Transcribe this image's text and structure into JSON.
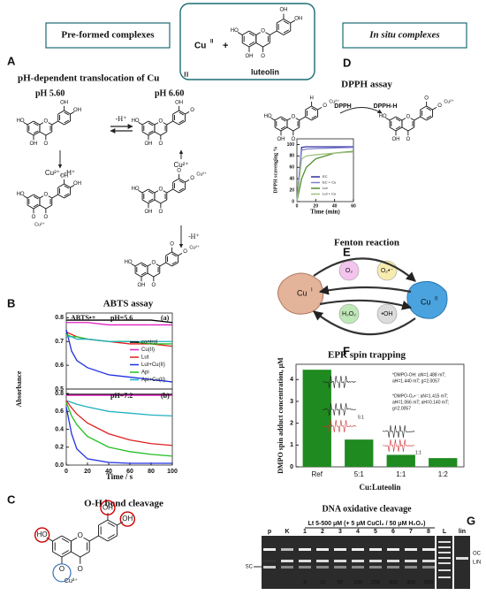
{
  "header": {
    "left": "Pre-formed complexes",
    "right": "In situ complexes",
    "metal": "Cu",
    "metal_ox": "II",
    "plus": "+",
    "ligand": "luteolin"
  },
  "atoms": {
    "oh": "OH",
    "ho": "HO",
    "o": "O",
    "cu2": "Cu²⁺",
    "h": "H"
  },
  "panel_a": {
    "letter": "A",
    "title": "pH-dependent translocation of Cu",
    "title_ox": "II",
    "ph_left": "pH 5.60",
    "ph_right": "pH 6.60",
    "step_top": "-H⁺",
    "step_left": "Cu²⁺, -H⁺",
    "step_right": "Cu²⁺",
    "step_down": "-H⁺"
  },
  "panel_b": {
    "letter": "B",
    "title": "ABTS assay"
  },
  "panel_c": {
    "letter": "C",
    "title": "O-H bond cleavage"
  },
  "panel_d": {
    "letter": "D",
    "title": "DPPH assay",
    "reagent": "DPPH",
    "product": "DPPH-H"
  },
  "panel_e": {
    "letter": "E",
    "title": "Fenton reaction",
    "cu1": "Cu",
    "cu1_ox": "I",
    "cu2": "Cu",
    "cu2_ox": "II",
    "species": [
      "O₂",
      "O₂•⁻",
      "H₂O₂",
      "•OH"
    ]
  },
  "panel_f": {
    "letter": "F",
    "title": "EPR spin trapping",
    "note_oh": [
      "*DMPO-OH: aN=1.488 mT;",
      "aH=1.440 mT; g=2.0057"
    ],
    "note_o2": [
      "*DMPO-O₂•⁻: aN=1.415 mT;",
      "aH=1.066 mT; aH=0.140 mT;",
      "g=2.0057"
    ],
    "inset_labels": [
      "5:1",
      "1:1"
    ]
  },
  "panel_g": {
    "letter": "G",
    "title": "DNA oxidative cleavage",
    "subtitle": "Lt 5-500 μM (+ 5 μM CuCl₂ / 50 μM H₂O₂)",
    "lanes": [
      "p",
      "K",
      "1",
      "2",
      "3",
      "4",
      "5",
      "6",
      "7",
      "8",
      "L",
      "lin"
    ],
    "doses": [
      "5",
      "10",
      "50",
      "100",
      "200",
      "300",
      "400",
      "500"
    ],
    "sc": "SC",
    "oc": "OC",
    "lin": "LIN"
  },
  "chart_data": [
    {
      "type": "line",
      "annotations": [
        "ABTS•+",
        "pH=5.6",
        "(a)"
      ],
      "legend": "lower right",
      "x": [
        0,
        5,
        10,
        20,
        40,
        60,
        80,
        100
      ],
      "xlim": [
        0,
        100
      ],
      "ylim": [
        0.5,
        0.82
      ],
      "yticks": [
        0.5,
        0.6,
        0.7,
        0.8
      ],
      "series": [
        {
          "name": "control",
          "color": "#000000",
          "values": [
            0.79,
            0.79,
            0.79,
            0.79,
            0.79,
            0.79,
            0.79,
            0.78
          ]
        },
        {
          "name": "Cu(II)",
          "color": "#e020c0",
          "values": [
            0.78,
            0.78,
            0.78,
            0.78,
            0.77,
            0.77,
            0.77,
            0.77
          ]
        },
        {
          "name": "Lut",
          "color": "#e02020",
          "values": [
            0.74,
            0.73,
            0.72,
            0.71,
            0.7,
            0.69,
            0.69,
            0.68
          ]
        },
        {
          "name": "Lut+Cu(II)",
          "color": "#2030e0",
          "values": [
            0.75,
            0.66,
            0.62,
            0.59,
            0.56,
            0.55,
            0.54,
            0.53
          ]
        },
        {
          "name": "Api",
          "color": "#20c020",
          "values": [
            0.73,
            0.72,
            0.72,
            0.71,
            0.7,
            0.7,
            0.69,
            0.69
          ]
        },
        {
          "name": "Api+Cu(II)",
          "color": "#20b0c0",
          "values": [
            0.72,
            0.72,
            0.71,
            0.71,
            0.7,
            0.7,
            0.7,
            0.7
          ]
        }
      ]
    },
    {
      "type": "line",
      "annotations": [
        "pH=7.2",
        "(b)"
      ],
      "x_label": "Time / s",
      "y_label": "Absorbance",
      "x": [
        0,
        5,
        10,
        20,
        40,
        60,
        80,
        100
      ],
      "xlim": [
        0,
        100
      ],
      "xticks": [
        0,
        20,
        40,
        60,
        80,
        100
      ],
      "ylim": [
        0,
        0.85
      ],
      "yticks": [
        {
          "value": 0,
          "label": "0.0"
        },
        0.2,
        0.4,
        0.6,
        0.8
      ],
      "series": [
        {
          "color": "#000000",
          "values": [
            0.79,
            0.79,
            0.79,
            0.79,
            0.79,
            0.79,
            0.79,
            0.79
          ]
        },
        {
          "color": "#e020c0",
          "values": [
            0.78,
            0.78,
            0.78,
            0.78,
            0.78,
            0.78,
            0.78,
            0.78
          ]
        },
        {
          "color": "#20b0c0",
          "values": [
            0.72,
            0.7,
            0.68,
            0.65,
            0.6,
            0.58,
            0.56,
            0.55
          ]
        },
        {
          "color": "#e02020",
          "values": [
            0.72,
            0.64,
            0.57,
            0.47,
            0.35,
            0.28,
            0.24,
            0.22
          ]
        },
        {
          "color": "#20c020",
          "values": [
            0.7,
            0.55,
            0.45,
            0.32,
            0.2,
            0.15,
            0.12,
            0.1
          ]
        },
        {
          "color": "#2030e0",
          "values": [
            0.65,
            0.35,
            0.18,
            0.07,
            0.03,
            0.02,
            0.02,
            0.02
          ]
        }
      ]
    },
    {
      "type": "line",
      "x_label": "Time (min)",
      "y_label": "DPPH scavenging %",
      "legend": "lower right",
      "x": [
        0,
        5,
        10,
        20,
        40,
        60
      ],
      "xlim": [
        0,
        60
      ],
      "xticks": [
        0,
        20,
        40,
        60
      ],
      "ylim": [
        0,
        110
      ],
      "yticks": [
        0,
        20,
        40,
        60,
        80,
        100
      ],
      "series": [
        {
          "name": "EC",
          "color": "#3030a0",
          "values": [
            0,
            95,
            96,
            96,
            96,
            96
          ]
        },
        {
          "name": "EC + Cu",
          "color": "#8080d0",
          "values": [
            0,
            90,
            92,
            93,
            94,
            95
          ]
        },
        {
          "name": "Lut",
          "color": "#509030",
          "values": [
            0,
            40,
            60,
            75,
            85,
            88
          ]
        },
        {
          "name": "Lut + Cu",
          "color": "#a0c080",
          "values": [
            0,
            75,
            80,
            82,
            85,
            87
          ]
        }
      ]
    },
    {
      "type": "bar",
      "x_label": "Cu:Luteolin",
      "y_label": "DMPO spin adduct concentration, μM",
      "categories": [
        "Ref",
        "5:1",
        "1:1",
        "1:2"
      ],
      "values": [
        4.45,
        1.25,
        0.55,
        0.4
      ],
      "color": "#1f8a1f",
      "ylim": [
        0,
        4.7
      ],
      "yticks": [
        0,
        1,
        2,
        3,
        4
      ]
    }
  ]
}
